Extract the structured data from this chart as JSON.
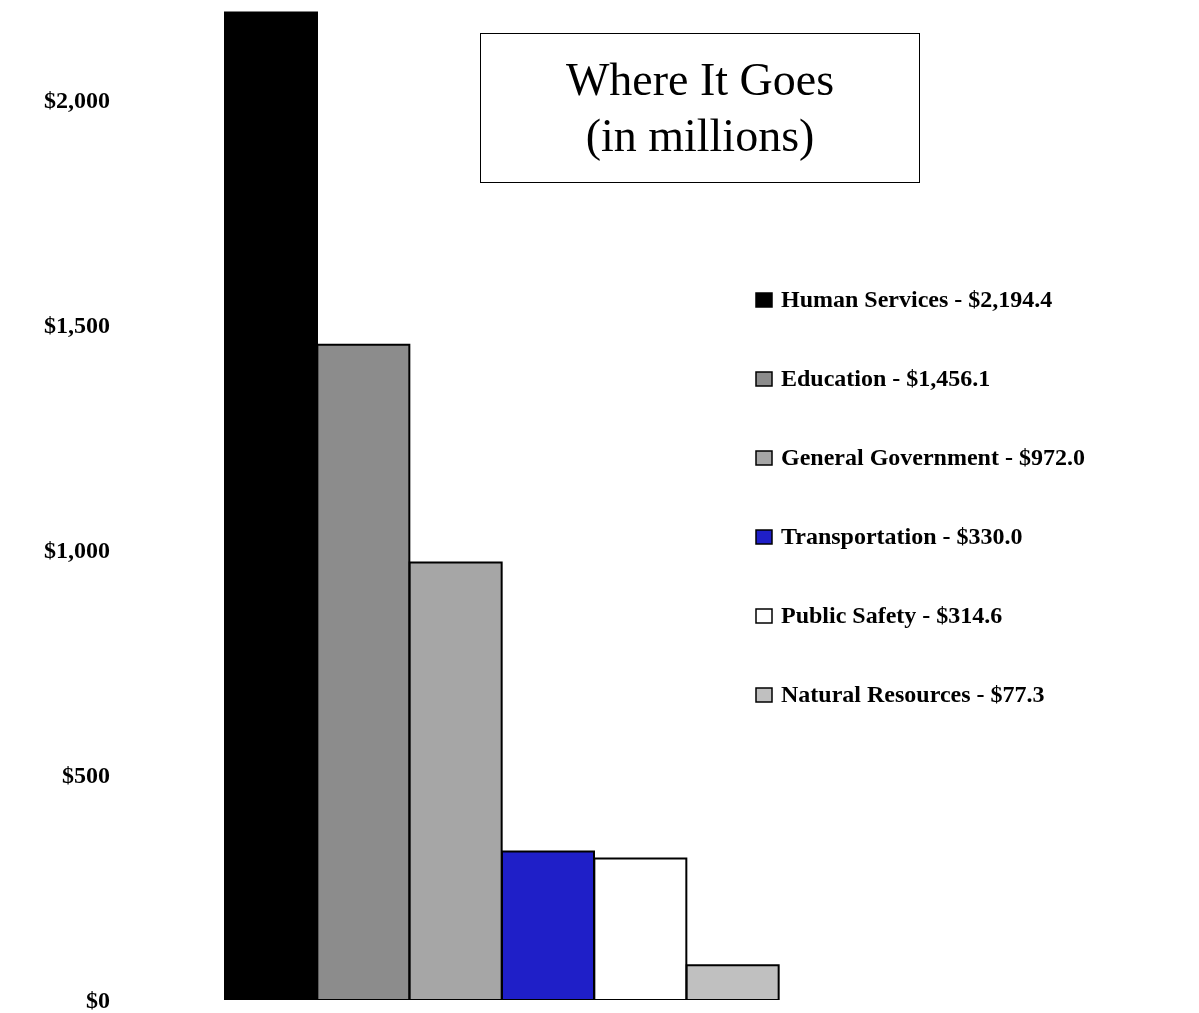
{
  "chart_data": {
    "type": "bar",
    "stacked": true,
    "title": "Where It Goes",
    "subtitle": "(in millions)",
    "categories": [
      null,
      null,
      null,
      null,
      null,
      null
    ],
    "series": [
      {
        "name": "Human Services - $2,194.4",
        "color": "#000000",
        "values": [
          2194.4,
          null,
          null,
          null,
          null,
          null
        ]
      },
      {
        "name": "Education - $1,456.1",
        "color": "#8c8c8c",
        "values": [
          null,
          1456.1,
          null,
          null,
          null,
          null
        ]
      },
      {
        "name": "General Government - $972.0",
        "color": "#a6a6a6",
        "values": [
          null,
          null,
          972.0,
          null,
          null,
          null
        ]
      },
      {
        "name": "Transportation - $330.0",
        "color": "#1f1fc8",
        "values": [
          null,
          null,
          null,
          330.0,
          null,
          null
        ]
      },
      {
        "name": "Public Safety - $314.6",
        "color": "#ffffff",
        "values": [
          null,
          null,
          null,
          null,
          314.6,
          null
        ]
      },
      {
        "name": "Natural Resources - $77.3",
        "color": "#c0c0c0",
        "values": [
          null,
          null,
          null,
          null,
          null,
          77.3
        ]
      }
    ],
    "ylim": [
      0,
      2200
    ],
    "yticks": [
      {
        "value": 0,
        "label": "$0"
      },
      {
        "value": 500,
        "label": "$500"
      },
      {
        "value": 1000,
        "label": "$1,000"
      },
      {
        "value": 1500,
        "label": "$1,500"
      },
      {
        "value": 2000,
        "label": "$2,000"
      }
    ],
    "grid": false,
    "legend": "right",
    "tick_labels": "y"
  }
}
